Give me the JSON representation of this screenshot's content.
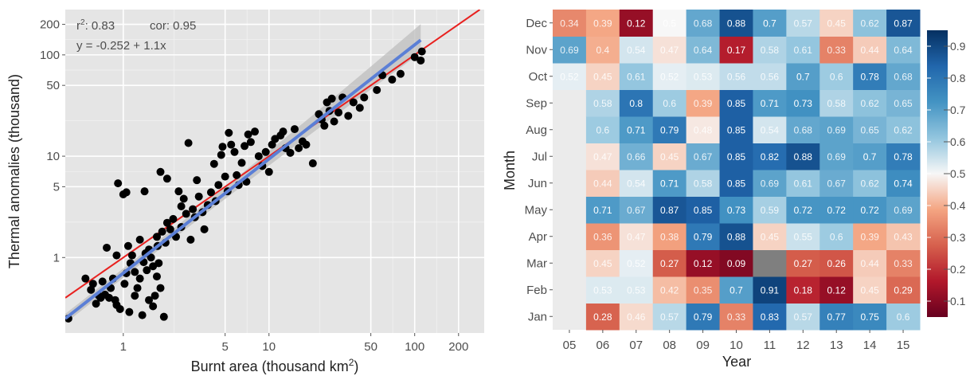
{
  "chart_data": [
    {
      "type": "scatter",
      "xlabel": "Burnt area (thousand km",
      "xlabel_sup": "2",
      "xlabel_close": ")",
      "ylabel": "Thermal anomalies (thousand)",
      "x_scale": "log",
      "y_scale": "log",
      "xlim": [
        0.4,
        300
      ],
      "ylim": [
        0.18,
        280
      ],
      "xticks": [
        1,
        5,
        10,
        50,
        100,
        200
      ],
      "yticks": [
        1,
        5,
        10,
        50,
        100,
        200
      ],
      "stats_r2_label": "r",
      "stats_r2_sup": "2",
      "stats_r2_value": ": 0.83",
      "stats_cor": "cor: 0.95",
      "equation": "y = -0.252 + 1.1x",
      "grid": true,
      "colors": {
        "points": "#000000",
        "fit": "#5b7fd6",
        "band": "#bdbdbd",
        "identity": "#e8211f",
        "panel": "#e5e5e5"
      },
      "fit_line": {
        "x": [
          0.4,
          110
        ],
        "y": [
          0.25,
          140
        ]
      },
      "identity_line": {
        "x": [
          0.4,
          280
        ],
        "y": [
          0.4,
          280
        ]
      },
      "points": [
        [
          0.42,
          0.25
        ],
        [
          0.55,
          0.62
        ],
        [
          0.6,
          0.48
        ],
        [
          0.62,
          0.55
        ],
        [
          0.65,
          0.35
        ],
        [
          0.68,
          0.42
        ],
        [
          0.7,
          0.4
        ],
        [
          0.72,
          0.58
        ],
        [
          0.75,
          0.43
        ],
        [
          0.77,
          1.25
        ],
        [
          0.8,
          0.4
        ],
        [
          0.82,
          0.5
        ],
        [
          0.85,
          0.62
        ],
        [
          0.88,
          0.38
        ],
        [
          0.9,
          0.34
        ],
        [
          0.9,
          1.05
        ],
        [
          0.92,
          5.4
        ],
        [
          0.95,
          0.31
        ],
        [
          1.0,
          4.2
        ],
        [
          1.02,
          0.55
        ],
        [
          1.05,
          0.7
        ],
        [
          1.05,
          4.4
        ],
        [
          1.08,
          1.3
        ],
        [
          1.1,
          0.29
        ],
        [
          1.12,
          0.88
        ],
        [
          1.15,
          1.05
        ],
        [
          1.2,
          0.72
        ],
        [
          1.2,
          0.42
        ],
        [
          1.25,
          0.5
        ],
        [
          1.3,
          0.62
        ],
        [
          1.3,
          1.5
        ],
        [
          1.35,
          0.27
        ],
        [
          1.38,
          0.9
        ],
        [
          1.4,
          4.5
        ],
        [
          1.42,
          1.1
        ],
        [
          1.45,
          0.75
        ],
        [
          1.5,
          0.38
        ],
        [
          1.5,
          1.2
        ],
        [
          1.55,
          1.0
        ],
        [
          1.6,
          0.82
        ],
        [
          1.6,
          0.33
        ],
        [
          1.65,
          0.42
        ],
        [
          1.7,
          1.6
        ],
        [
          1.7,
          0.65
        ],
        [
          1.72,
          1.3
        ],
        [
          1.75,
          0.88
        ],
        [
          1.8,
          0.5
        ],
        [
          1.8,
          7.0
        ],
        [
          1.85,
          1.8
        ],
        [
          1.9,
          0.26
        ],
        [
          1.95,
          1.4
        ],
        [
          2.0,
          6.0
        ],
        [
          2.0,
          2.2
        ],
        [
          2.1,
          1.9
        ],
        [
          2.2,
          2.4
        ],
        [
          2.3,
          1.6
        ],
        [
          2.4,
          4.5
        ],
        [
          2.5,
          3.2
        ],
        [
          2.5,
          2.0
        ],
        [
          2.6,
          3.8
        ],
        [
          2.7,
          2.7
        ],
        [
          2.8,
          13.5
        ],
        [
          2.9,
          1.5
        ],
        [
          3.0,
          3.0
        ],
        [
          3.1,
          2.5
        ],
        [
          3.2,
          5.8
        ],
        [
          3.3,
          4.0
        ],
        [
          3.5,
          2.8
        ],
        [
          3.6,
          1.9
        ],
        [
          3.8,
          3.3
        ],
        [
          4.0,
          4.4
        ],
        [
          4.2,
          8.4
        ],
        [
          4.3,
          3.6
        ],
        [
          4.5,
          5.2
        ],
        [
          4.7,
          10.3
        ],
        [
          4.8,
          12.4
        ],
        [
          5.0,
          6.3
        ],
        [
          5.2,
          4.5
        ],
        [
          5.3,
          17.0
        ],
        [
          5.5,
          13.0
        ],
        [
          5.8,
          11.0
        ],
        [
          6.0,
          6.5
        ],
        [
          6.2,
          5.2
        ],
        [
          6.5,
          8.6
        ],
        [
          6.8,
          12.6
        ],
        [
          7.0,
          5.6
        ],
        [
          7.2,
          16.4
        ],
        [
          7.5,
          13.8
        ],
        [
          8.0,
          17.5
        ],
        [
          8.5,
          10.0
        ],
        [
          9.0,
          8.0
        ],
        [
          9.5,
          11.0
        ],
        [
          10.0,
          7.0
        ],
        [
          10.5,
          13.0
        ],
        [
          11.0,
          14.8
        ],
        [
          12.0,
          16.0
        ],
        [
          12.5,
          17.5
        ],
        [
          13.0,
          12.0
        ],
        [
          14.0,
          10.8
        ],
        [
          15.0,
          18.5
        ],
        [
          16.0,
          12.0
        ],
        [
          17.0,
          14.0
        ],
        [
          18.0,
          13.0
        ],
        [
          20.0,
          8.5
        ],
        [
          22.0,
          26.0
        ],
        [
          23.0,
          23.0
        ],
        [
          24.0,
          20.0
        ],
        [
          25.0,
          34.0
        ],
        [
          26.0,
          28.0
        ],
        [
          27.0,
          37.0
        ],
        [
          28.0,
          22.0
        ],
        [
          30.0,
          27.0
        ],
        [
          32.0,
          38.0
        ],
        [
          35.0,
          25.0
        ],
        [
          38.0,
          34.0
        ],
        [
          42.0,
          30.0
        ],
        [
          45.0,
          38.0
        ],
        [
          55.0,
          45.0
        ],
        [
          60.0,
          63.0
        ],
        [
          70.0,
          57.0
        ],
        [
          80.0,
          65.0
        ],
        [
          100.0,
          95.0
        ],
        [
          110.0,
          88.0
        ],
        [
          112.0,
          108.0
        ]
      ]
    },
    {
      "type": "heatmap",
      "xlabel": "Year",
      "ylabel": "Month",
      "x": [
        "05",
        "06",
        "07",
        "08",
        "09",
        "10",
        "11",
        "12",
        "13",
        "14",
        "15"
      ],
      "y": [
        "Jan",
        "Feb",
        "Mar",
        "Apr",
        "May",
        "Jun",
        "Jul",
        "Aug",
        "Sep",
        "Oct",
        "Nov",
        "Dec"
      ],
      "values": [
        [
          null,
          0.28,
          0.46,
          0.57,
          0.79,
          0.33,
          0.83,
          0.57,
          0.77,
          0.75,
          0.6
        ],
        [
          null,
          0.53,
          0.53,
          0.42,
          0.35,
          0.7,
          0.91,
          0.18,
          0.12,
          0.45,
          0.29
        ],
        [
          null,
          0.45,
          0.52,
          0.27,
          0.12,
          0.09,
          "NA",
          0.27,
          0.26,
          0.44,
          0.33
        ],
        [
          null,
          0.36,
          0.47,
          0.38,
          0.79,
          0.88,
          0.45,
          0.55,
          0.6,
          0.39,
          0.43
        ],
        [
          null,
          0.71,
          0.67,
          0.87,
          0.85,
          0.73,
          0.59,
          0.72,
          0.72,
          0.72,
          0.69
        ],
        [
          null,
          0.44,
          0.54,
          0.71,
          0.58,
          0.85,
          0.69,
          0.61,
          0.67,
          0.62,
          0.74
        ],
        [
          null,
          0.47,
          0.66,
          0.45,
          0.67,
          0.85,
          0.82,
          0.88,
          0.69,
          0.7,
          0.78
        ],
        [
          null,
          0.6,
          0.71,
          0.79,
          0.48,
          0.85,
          0.54,
          0.68,
          0.69,
          0.65,
          0.62
        ],
        [
          null,
          0.58,
          0.8,
          0.6,
          0.39,
          0.85,
          0.71,
          0.73,
          0.58,
          0.62,
          0.65
        ],
        [
          0.52,
          0.45,
          0.61,
          0.52,
          0.53,
          0.56,
          0.56,
          0.7,
          0.6,
          0.78,
          0.68
        ],
        [
          0.69,
          0.4,
          0.54,
          0.47,
          0.64,
          0.17,
          0.58,
          0.61,
          0.33,
          0.44,
          0.64
        ],
        [
          0.34,
          0.39,
          0.12,
          0.5,
          0.68,
          0.88,
          0.7,
          0.57,
          0.45,
          0.62,
          0.87
        ]
      ],
      "colorbar": {
        "min": 0.05,
        "max": 0.95,
        "ticks": [
          0.1,
          0.2,
          0.3,
          0.4,
          0.5,
          0.6,
          0.7,
          0.8,
          0.9
        ],
        "tick_labels": [
          "0.1",
          "0.2",
          "0.3",
          "0.4",
          "0.5",
          "0.6",
          "0.7",
          "0.8",
          "0.9"
        ]
      },
      "colors": {
        "low": "#67001f",
        "mid": "#f7f7f7",
        "high": "#053061",
        "na": "#7f7f7f",
        "empty": "#ebebeb"
      }
    }
  ]
}
